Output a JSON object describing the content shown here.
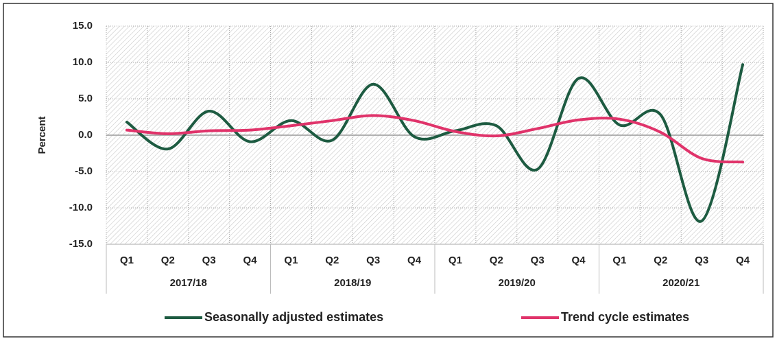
{
  "chart_data": {
    "type": "line",
    "y_label": "Percent",
    "categories": [
      "Q1",
      "Q2",
      "Q3",
      "Q4",
      "Q1",
      "Q2",
      "Q3",
      "Q4",
      "Q1",
      "Q2",
      "Q3",
      "Q4",
      "Q1",
      "Q2",
      "Q3",
      "Q4"
    ],
    "groups": [
      "2017/18",
      "2018/19",
      "2019/20",
      "2020/21"
    ],
    "series": [
      {
        "name": "Seasonally adjusted estimates",
        "color": "#1d5b41",
        "values": [
          1.8,
          -1.9,
          3.3,
          -0.9,
          2.0,
          -0.7,
          7.0,
          -0.2,
          0.6,
          1.3,
          -4.7,
          7.8,
          1.4,
          2.8,
          -11.8,
          9.7
        ]
      },
      {
        "name": "Trend cycle estimates",
        "color": "#e0336a",
        "values": [
          0.7,
          0.2,
          0.6,
          0.7,
          1.3,
          2.0,
          2.7,
          2.0,
          0.5,
          -0.1,
          0.9,
          2.1,
          2.2,
          0.4,
          -3.2,
          -3.7
        ]
      }
    ],
    "ylim": [
      -15,
      15
    ],
    "yticks": [
      {
        "value": -15,
        "label": "-15.0"
      },
      {
        "value": -10,
        "label": "-10.0"
      },
      {
        "value": -5,
        "label": "-5.0"
      },
      {
        "value": 0,
        "label": "0.0"
      },
      {
        "value": 5,
        "label": "5.0"
      },
      {
        "value": 10,
        "label": "10.0"
      },
      {
        "value": 15,
        "label": "15.0"
      }
    ],
    "grid": true,
    "legend": "bottom",
    "smooth": true
  }
}
